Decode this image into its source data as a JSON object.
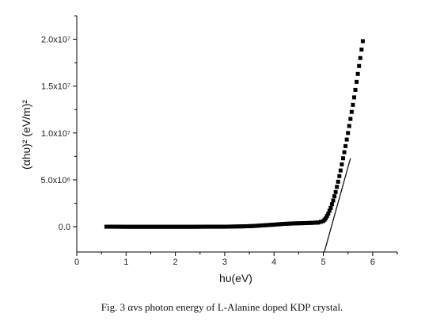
{
  "caption": "Fig. 3 αvs photon energy of L-Alanine doped KDP crystal.",
  "chart_data": {
    "type": "scatter",
    "xlabel": "hυ(eV)",
    "ylabel": "(αhυ)² (eV/m)²",
    "xlim": [
      0,
      6.5
    ],
    "ylim": [
      -2700000,
      22500000
    ],
    "x_ticks": [
      {
        "value": 0,
        "label": "0"
      },
      {
        "value": 1,
        "label": "1"
      },
      {
        "value": 2,
        "label": "2"
      },
      {
        "value": 3,
        "label": "3"
      },
      {
        "value": 4,
        "label": "4"
      },
      {
        "value": 5,
        "label": "5"
      },
      {
        "value": 6,
        "label": "6"
      }
    ],
    "y_ticks": [
      {
        "value": 0,
        "label": "0.0"
      },
      {
        "value": 5000000,
        "label": "5.0x10⁶"
      },
      {
        "value": 10000000,
        "label": "1.0x10⁷"
      },
      {
        "value": 15000000,
        "label": "1.5x10⁷"
      },
      {
        "value": 20000000,
        "label": "2.0x10⁷"
      }
    ],
    "series": [
      {
        "marker": "square",
        "color": "#000000",
        "x": [
          0.6,
          0.8,
          1.0,
          1.2,
          1.4,
          1.6,
          1.8,
          2.0,
          2.2,
          2.4,
          2.6,
          2.8,
          3.0,
          3.2,
          3.4,
          3.6,
          3.8,
          4.0,
          4.2,
          4.4,
          4.6,
          4.8,
          4.9,
          5.0,
          5.05,
          5.1,
          5.15,
          5.2,
          5.25,
          5.3,
          5.35,
          5.4,
          5.45,
          5.5,
          5.55,
          5.6,
          5.65,
          5.7,
          5.75,
          5.8
        ],
        "y": [
          0,
          0,
          -10000,
          -10000,
          -10000,
          -10000,
          -10000,
          -10000,
          -10000,
          -10000,
          0,
          0,
          0,
          20000,
          40000,
          80000,
          150000,
          220000,
          300000,
          350000,
          380000,
          420000,
          450000,
          600000,
          900000,
          1400000,
          2000000,
          2800000,
          3700000,
          4800000,
          6000000,
          7300000,
          8600000,
          10000000,
          11500000,
          13000000,
          14600000,
          16300000,
          18000000,
          19800000
        ]
      }
    ],
    "fit_line": {
      "x": [
        5.02,
        5.55
      ],
      "y": [
        -2700000,
        7300000
      ],
      "color": "#000000"
    }
  }
}
